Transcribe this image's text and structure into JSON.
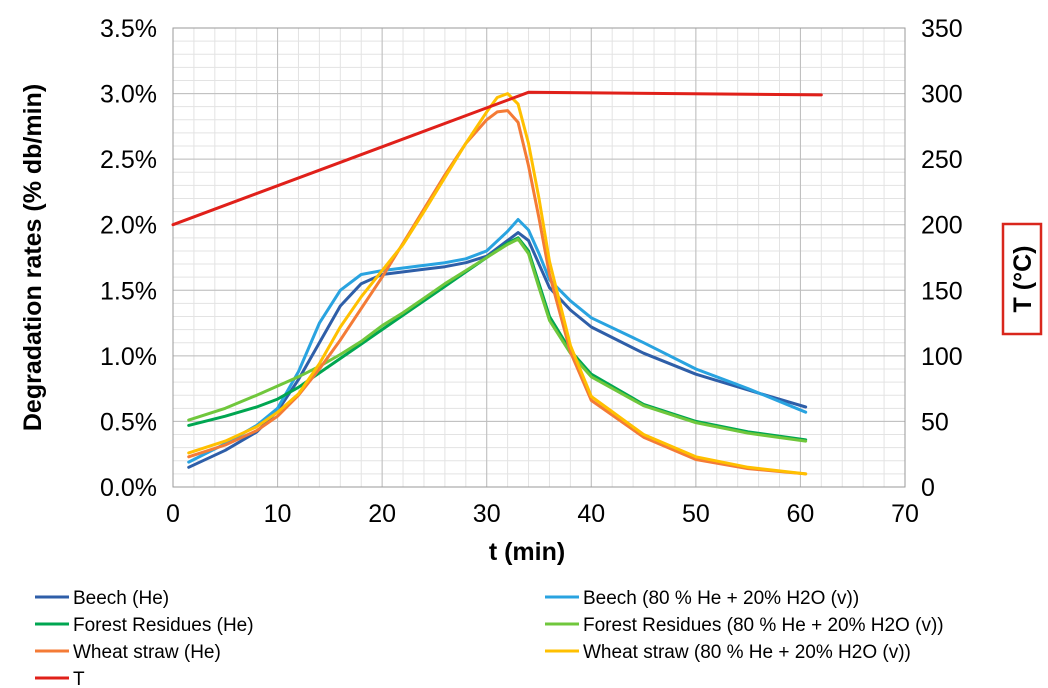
{
  "chart_data": {
    "type": "line",
    "xlabel": "t (min)",
    "ylabel": "Degradation rates (% db/min)",
    "y2label": "T (°C)",
    "xlim": [
      0,
      70
    ],
    "ylim": [
      0,
      3.5
    ],
    "y2lim": [
      0,
      350
    ],
    "xticks": [
      "0",
      "10",
      "20",
      "30",
      "40",
      "50",
      "60",
      "70"
    ],
    "yticks": [
      "0.0%",
      "0.5%",
      "1.0%",
      "1.5%",
      "2.0%",
      "2.5%",
      "3.0%",
      "3.5%"
    ],
    "y2ticks": [
      "0",
      "50",
      "100",
      "150",
      "200",
      "250",
      "300",
      "350"
    ],
    "grid": true,
    "legend_position": "bottom",
    "series": [
      {
        "name": "Beech (He)",
        "color": "#2E5EA8",
        "axis": "left",
        "x": [
          1.5,
          5,
          8,
          10,
          12,
          14,
          16,
          18,
          20,
          22,
          24,
          26,
          28,
          30,
          32,
          33,
          34,
          35,
          36,
          38,
          40,
          45,
          50,
          55,
          60.5
        ],
        "y": [
          0.15,
          0.28,
          0.42,
          0.58,
          0.82,
          1.1,
          1.38,
          1.55,
          1.62,
          1.64,
          1.66,
          1.68,
          1.71,
          1.76,
          1.88,
          1.94,
          1.88,
          1.7,
          1.52,
          1.35,
          1.22,
          1.02,
          0.86,
          0.74,
          0.61
        ]
      },
      {
        "name": "Beech (80 % He + 20% H2O (v))",
        "color": "#29A3E0",
        "axis": "left",
        "x": [
          1.5,
          5,
          8,
          10,
          12,
          14,
          16,
          18,
          20,
          22,
          24,
          26,
          28,
          30,
          32,
          33,
          34,
          35,
          36,
          38,
          40,
          45,
          50,
          55,
          60.5
        ],
        "y": [
          0.19,
          0.33,
          0.47,
          0.6,
          0.88,
          1.25,
          1.5,
          1.62,
          1.65,
          1.67,
          1.69,
          1.71,
          1.74,
          1.8,
          1.95,
          2.04,
          1.96,
          1.78,
          1.58,
          1.42,
          1.29,
          1.1,
          0.9,
          0.75,
          0.57
        ]
      },
      {
        "name": "Forest Residues (He)",
        "color": "#00A651",
        "axis": "left",
        "x": [
          1.5,
          5,
          8,
          10,
          12,
          14,
          16,
          18,
          20,
          22,
          24,
          26,
          28,
          30,
          32,
          33,
          34,
          35,
          36,
          38,
          40,
          45,
          50,
          55,
          60.5
        ],
        "y": [
          0.47,
          0.54,
          0.61,
          0.67,
          0.76,
          0.87,
          0.98,
          1.09,
          1.2,
          1.31,
          1.42,
          1.53,
          1.64,
          1.75,
          1.86,
          1.9,
          1.8,
          1.55,
          1.3,
          1.04,
          0.86,
          0.63,
          0.5,
          0.42,
          0.36
        ]
      },
      {
        "name": "Forest Residues (80 % He + 20% H2O (v))",
        "color": "#70C73C",
        "axis": "left",
        "x": [
          1.5,
          5,
          8,
          10,
          12,
          14,
          16,
          18,
          20,
          22,
          24,
          26,
          28,
          30,
          32,
          33,
          34,
          35,
          36,
          38,
          40,
          45,
          50,
          55,
          60.5
        ],
        "y": [
          0.51,
          0.6,
          0.7,
          0.77,
          0.84,
          0.92,
          1.01,
          1.11,
          1.23,
          1.33,
          1.44,
          1.55,
          1.65,
          1.75,
          1.85,
          1.89,
          1.78,
          1.52,
          1.27,
          1.02,
          0.84,
          0.62,
          0.49,
          0.41,
          0.35
        ]
      },
      {
        "name": "Wheat straw (He)",
        "color": "#F47B36",
        "axis": "left",
        "x": [
          1.5,
          5,
          8,
          10,
          12,
          14,
          16,
          18,
          20,
          22,
          24,
          26,
          28,
          30,
          31,
          32,
          33,
          34,
          35,
          36,
          38,
          40,
          45,
          50,
          55,
          60.5
        ],
        "y": [
          0.23,
          0.32,
          0.43,
          0.54,
          0.7,
          0.9,
          1.12,
          1.36,
          1.6,
          1.86,
          2.12,
          2.38,
          2.62,
          2.8,
          2.86,
          2.87,
          2.78,
          2.45,
          2.05,
          1.62,
          1.03,
          0.66,
          0.38,
          0.21,
          0.14,
          0.1
        ]
      },
      {
        "name": "Wheat straw (80 % He + 20% H2O (v))",
        "color": "#FFC000",
        "axis": "left",
        "x": [
          1.5,
          5,
          8,
          10,
          12,
          14,
          16,
          18,
          20,
          22,
          24,
          26,
          28,
          30,
          31,
          32,
          33,
          34,
          35,
          36,
          38,
          40,
          45,
          50,
          55,
          60.5
        ],
        "y": [
          0.26,
          0.35,
          0.46,
          0.57,
          0.71,
          0.94,
          1.22,
          1.45,
          1.65,
          1.85,
          2.1,
          2.36,
          2.62,
          2.86,
          2.97,
          3.0,
          2.92,
          2.62,
          2.2,
          1.72,
          1.08,
          0.69,
          0.4,
          0.23,
          0.15,
          0.1
        ]
      },
      {
        "name": "T",
        "color": "#E0201A",
        "axis": "right",
        "x": [
          0,
          34,
          62
        ],
        "y": [
          200,
          301,
          299
        ]
      }
    ]
  }
}
